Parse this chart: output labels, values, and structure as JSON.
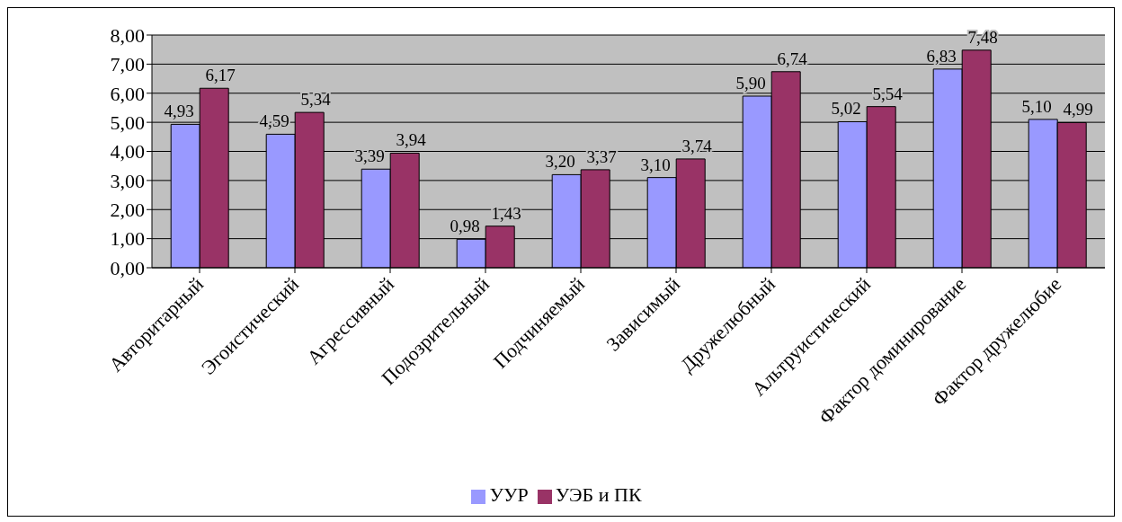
{
  "chart_data": {
    "type": "bar",
    "categories": [
      "Авторитарный",
      "Эгоистический",
      "Агрессивный",
      "Подозрительный",
      "Подчиняемый",
      "Зависимый",
      "Дружелюбный",
      "Альтруистический",
      "Фактор доминирование",
      "Фактор дружелюбие"
    ],
    "series": [
      {
        "name": "УУР",
        "color": "#9999ff",
        "values": [
          4.93,
          4.59,
          3.39,
          0.98,
          3.2,
          3.1,
          5.9,
          5.02,
          6.83,
          5.1
        ],
        "value_labels": [
          "4,93",
          "4,59",
          "3,39",
          "0,98",
          "3,20",
          "3,10",
          "5,90",
          "5,02",
          "6,83",
          "5,10"
        ]
      },
      {
        "name": "УЭБ и ПК",
        "color": "#993366",
        "values": [
          6.17,
          5.34,
          3.94,
          1.43,
          3.37,
          3.74,
          6.74,
          5.54,
          7.48,
          4.99
        ],
        "value_labels": [
          "6,17",
          "5,34",
          "3,94",
          "1,43",
          "3,37",
          "3,74",
          "6,74",
          "5,54",
          "7,48",
          "4,99"
        ]
      }
    ],
    "ylim": [
      0,
      8
    ],
    "yticks": [
      {
        "value": 0,
        "label": "0,00"
      },
      {
        "value": 1,
        "label": "1,00"
      },
      {
        "value": 2,
        "label": "2,00"
      },
      {
        "value": 3,
        "label": "3,00"
      },
      {
        "value": 4,
        "label": "4,00"
      },
      {
        "value": 5,
        "label": "5,00"
      },
      {
        "value": 6,
        "label": "6,00"
      },
      {
        "value": 7,
        "label": "7,00"
      },
      {
        "value": 8,
        "label": "8,00"
      }
    ],
    "grid": "y",
    "legend": "bottom"
  }
}
